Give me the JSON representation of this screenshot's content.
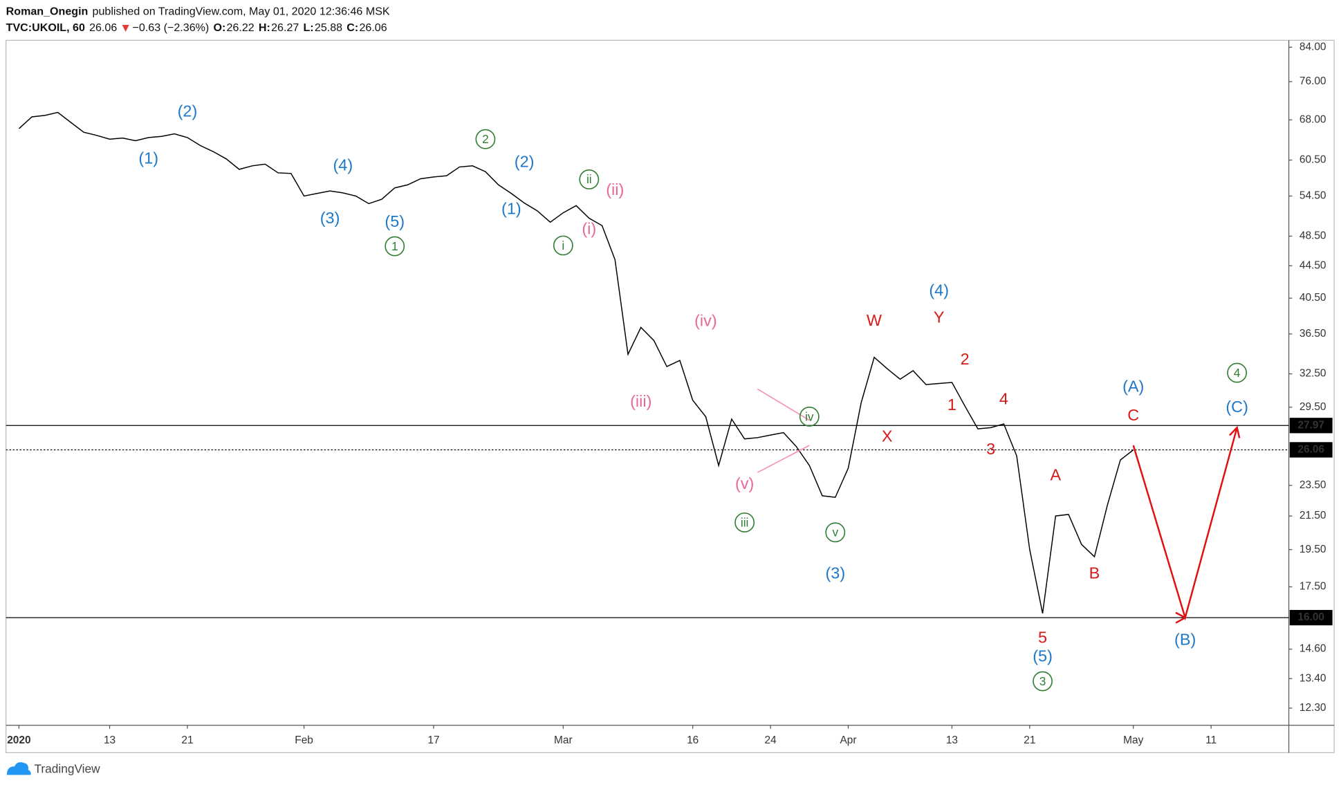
{
  "header": {
    "author": "Roman_Onegin",
    "published": "published on TradingView.com, May 01, 2020 12:36:46 MSK",
    "symbol": "TVC:UKOIL, 60",
    "last": "26.06",
    "change": "−0.63 (−2.36%)",
    "o_label": "O:",
    "o": "26.22",
    "h_label": "H:",
    "h": "26.27",
    "l_label": "L:",
    "l": "25.88",
    "c_label": "C:",
    "c": "26.06"
  },
  "footer": {
    "brand": "TradingView"
  },
  "chart_data": {
    "type": "line",
    "color": "#000000",
    "log_scale": true,
    "grid": false,
    "xlim": [
      "2020-01-01",
      "2020-05-19"
    ],
    "ylim": [
      11.7,
      85.7
    ],
    "xticks": [
      {
        "value": "2020-01-02",
        "label": "2020"
      },
      {
        "value": "2020-01-13",
        "label": "13"
      },
      {
        "value": "2020-01-21",
        "label": "21"
      },
      {
        "value": "2020-02-03",
        "label": "Feb"
      },
      {
        "value": "2020-02-17",
        "label": "17"
      },
      {
        "value": "2020-03-02",
        "label": "Mar"
      },
      {
        "value": "2020-03-16",
        "label": "16"
      },
      {
        "value": "2020-03-24",
        "label": "24"
      },
      {
        "value": "2020-04-01",
        "label": "Apr"
      },
      {
        "value": "2020-04-13",
        "label": "13"
      },
      {
        "value": "2020-04-21",
        "label": "21"
      },
      {
        "value": "2020-05-01",
        "label": "May"
      },
      {
        "value": "2020-05-11",
        "label": "11"
      }
    ],
    "yticks": [
      {
        "value": 84,
        "label": "84.00"
      },
      {
        "value": 76,
        "label": "76.00"
      },
      {
        "value": 68,
        "label": "68.00"
      },
      {
        "value": 60.5,
        "label": "60.50"
      },
      {
        "value": 54.5,
        "label": "54.50"
      },
      {
        "value": 48.5,
        "label": "48.50"
      },
      {
        "value": 44.5,
        "label": "44.50"
      },
      {
        "value": 40.5,
        "label": "40.50"
      },
      {
        "value": 36.5,
        "label": "36.50"
      },
      {
        "value": 32.5,
        "label": "32.50"
      },
      {
        "value": 29.5,
        "label": "29.50"
      },
      {
        "value": 23.5,
        "label": "23.50"
      },
      {
        "value": 21.5,
        "label": "21.50"
      },
      {
        "value": 19.5,
        "label": "19.50"
      },
      {
        "value": 17.5,
        "label": "17.50"
      },
      {
        "value": 14.6,
        "label": "14.60"
      },
      {
        "value": 13.4,
        "label": "13.40"
      },
      {
        "value": 12.3,
        "label": "12.30"
      }
    ],
    "x": [
      "2020-01-02",
      "2020-01-03",
      "2020-01-06",
      "2020-01-07",
      "2020-01-08",
      "2020-01-09",
      "2020-01-10",
      "2020-01-13",
      "2020-01-14",
      "2020-01-15",
      "2020-01-16",
      "2020-01-17",
      "2020-01-20",
      "2020-01-21",
      "2020-01-22",
      "2020-01-23",
      "2020-01-24",
      "2020-01-27",
      "2020-01-28",
      "2020-01-29",
      "2020-01-30",
      "2020-01-31",
      "2020-02-03",
      "2020-02-04",
      "2020-02-05",
      "2020-02-06",
      "2020-02-07",
      "2020-02-10",
      "2020-02-11",
      "2020-02-12",
      "2020-02-13",
      "2020-02-14",
      "2020-02-17",
      "2020-02-18",
      "2020-02-19",
      "2020-02-20",
      "2020-02-21",
      "2020-02-24",
      "2020-02-25",
      "2020-02-26",
      "2020-02-27",
      "2020-02-28",
      "2020-03-02",
      "2020-03-03",
      "2020-03-04",
      "2020-03-05",
      "2020-03-06",
      "2020-03-09",
      "2020-03-10",
      "2020-03-11",
      "2020-03-12",
      "2020-03-13",
      "2020-03-16",
      "2020-03-17",
      "2020-03-18",
      "2020-03-19",
      "2020-03-20",
      "2020-03-23",
      "2020-03-24",
      "2020-03-25",
      "2020-03-26",
      "2020-03-27",
      "2020-03-30",
      "2020-03-31",
      "2020-04-01",
      "2020-04-02",
      "2020-04-03",
      "2020-04-06",
      "2020-04-07",
      "2020-04-08",
      "2020-04-09",
      "2020-04-10",
      "2020-04-13",
      "2020-04-14",
      "2020-04-15",
      "2020-04-16",
      "2020-04-17",
      "2020-04-20",
      "2020-04-21",
      "2020-04-22",
      "2020-04-23",
      "2020-04-24",
      "2020-04-27",
      "2020-04-28",
      "2020-04-29",
      "2020-04-30",
      "2020-05-01"
    ],
    "values": [
      66.3,
      68.6,
      68.9,
      69.5,
      67.5,
      65.6,
      65.0,
      64.3,
      64.5,
      64.0,
      64.6,
      64.8,
      65.3,
      64.6,
      63.1,
      62.0,
      60.7,
      58.9,
      59.5,
      59.8,
      58.3,
      58.2,
      54.5,
      54.9,
      55.3,
      55.0,
      54.5,
      53.3,
      54.0,
      55.8,
      56.3,
      57.3,
      57.6,
      57.8,
      59.3,
      59.5,
      58.5,
      56.3,
      54.9,
      53.4,
      52.2,
      50.5,
      51.9,
      53.0,
      51.1,
      50.0,
      45.3,
      34.4,
      37.2,
      35.8,
      33.2,
      33.8,
      30.1,
      28.7,
      24.9,
      28.5,
      26.9,
      27.0,
      27.2,
      27.4,
      26.3,
      24.9,
      22.8,
      22.7,
      24.7,
      29.9,
      34.1,
      33.0,
      32.0,
      32.8,
      31.5,
      31.6,
      31.7,
      29.6,
      27.7,
      27.8,
      28.1,
      25.6,
      19.5,
      16.2,
      21.5,
      21.6,
      19.8,
      19.1,
      22.2,
      25.3,
      26.06
    ],
    "hlines": [
      {
        "value": 27.97,
        "label": "27.97",
        "style": "solid"
      },
      {
        "value": 26.06,
        "label": "26.06",
        "style": "dotted"
      },
      {
        "value": 16,
        "label": "16.00",
        "style": "solid"
      }
    ],
    "trendlines": [
      {
        "color": "#f48fb1",
        "x": [
          "2020-03-23",
          "2020-03-27"
        ],
        "y": [
          31.1,
          28.4
        ]
      },
      {
        "color": "#f48fb1",
        "x": [
          "2020-03-23",
          "2020-03-27"
        ],
        "y": [
          24.4,
          26.4
        ]
      }
    ],
    "projection": {
      "color": "#e01010",
      "x": [
        "2020-05-01",
        "2020-05-07",
        "2020-05-13"
      ],
      "y": [
        26.4,
        16.0,
        27.8
      ]
    },
    "annotations": [
      {
        "text": "(2)",
        "color": "#1e78c8",
        "circled": false,
        "x": "2020-01-21",
        "y": 69.7
      },
      {
        "text": "(1)",
        "color": "#1e78c8",
        "circled": false,
        "x": "2020-01-16",
        "y": 60.8
      },
      {
        "text": "(4)",
        "color": "#1e78c8",
        "circled": false,
        "x": "2020-02-06",
        "y": 59.6
      },
      {
        "text": "(3)",
        "color": "#1e78c8",
        "circled": false,
        "x": "2020-02-05",
        "y": 51.1
      },
      {
        "text": "(5)",
        "color": "#1e78c8",
        "circled": false,
        "x": "2020-02-12",
        "y": 50.6
      },
      {
        "text": "1",
        "color": "#2e7d32",
        "circled": true,
        "x": "2020-02-12",
        "y": 47.1
      },
      {
        "text": "2",
        "color": "#2e7d32",
        "circled": true,
        "x": "2020-02-21",
        "y": 64.3
      },
      {
        "text": "(2)",
        "color": "#1e78c8",
        "circled": false,
        "x": "2020-02-26",
        "y": 60.2
      },
      {
        "text": "(1)",
        "color": "#1e78c8",
        "circled": false,
        "x": "2020-02-25",
        "y": 52.5
      },
      {
        "text": "ii",
        "color": "#2e7d32",
        "circled": true,
        "x": "2020-03-04",
        "y": 57.2
      },
      {
        "text": "(ii)",
        "color": "#e8679a",
        "circled": false,
        "x": "2020-03-06",
        "y": 55.5
      },
      {
        "text": "i",
        "color": "#2e7d32",
        "circled": true,
        "x": "2020-03-02",
        "y": 47.2
      },
      {
        "text": "(i)",
        "color": "#e8679a",
        "circled": false,
        "x": "2020-03-04",
        "y": 49.5
      },
      {
        "text": "(iii)",
        "color": "#e8679a",
        "circled": false,
        "x": "2020-03-10",
        "y": 30.0
      },
      {
        "text": "(iv)",
        "color": "#e8679a",
        "circled": false,
        "x": "2020-03-17",
        "y": 37.9
      },
      {
        "text": "(v)",
        "color": "#e8679a",
        "circled": false,
        "x": "2020-03-20",
        "y": 23.6
      },
      {
        "text": "iii",
        "color": "#2e7d32",
        "circled": true,
        "x": "2020-03-20",
        "y": 21.1
      },
      {
        "text": "iv",
        "color": "#2e7d32",
        "circled": true,
        "x": "2020-03-27",
        "y": 28.7
      },
      {
        "text": "v",
        "color": "#2e7d32",
        "circled": true,
        "x": "2020-03-31",
        "y": 20.5
      },
      {
        "text": "(3)",
        "color": "#1e78c8",
        "circled": false,
        "x": "2020-03-31",
        "y": 18.2
      },
      {
        "text": "W",
        "color": "#d61a1a",
        "circled": false,
        "x": "2020-04-03",
        "y": 37.95
      },
      {
        "text": "X",
        "color": "#d61a1a",
        "circled": false,
        "x": "2020-04-06",
        "y": 27.1
      },
      {
        "text": "(4)",
        "color": "#1e78c8",
        "circled": false,
        "x": "2020-04-10",
        "y": 41.4
      },
      {
        "text": "Y",
        "color": "#d61a1a",
        "circled": false,
        "x": "2020-04-10",
        "y": 38.3
      },
      {
        "text": "2",
        "color": "#d61a1a",
        "circled": false,
        "x": "2020-04-14",
        "y": 33.9
      },
      {
        "text": "1",
        "color": "#d61a1a",
        "circled": false,
        "x": "2020-04-13",
        "y": 29.7
      },
      {
        "text": "4",
        "color": "#d61a1a",
        "circled": false,
        "x": "2020-04-17",
        "y": 30.2
      },
      {
        "text": "3",
        "color": "#d61a1a",
        "circled": false,
        "x": "2020-04-16",
        "y": 26.1
      },
      {
        "text": "A",
        "color": "#d61a1a",
        "circled": false,
        "x": "2020-04-23",
        "y": 24.2
      },
      {
        "text": "B",
        "color": "#d61a1a",
        "circled": false,
        "x": "2020-04-28",
        "y": 18.2
      },
      {
        "text": "C",
        "color": "#d61a1a",
        "circled": false,
        "x": "2020-05-01",
        "y": 28.8
      },
      {
        "text": "(A)",
        "color": "#1e78c8",
        "circled": false,
        "x": "2020-05-01",
        "y": 31.3
      },
      {
        "text": "5",
        "color": "#d61a1a",
        "circled": false,
        "x": "2020-04-22",
        "y": 15.1
      },
      {
        "text": "(5)",
        "color": "#1e78c8",
        "circled": false,
        "x": "2020-04-22",
        "y": 14.3
      },
      {
        "text": "3",
        "color": "#2e7d32",
        "circled": true,
        "x": "2020-04-22",
        "y": 13.3
      },
      {
        "text": "(B)",
        "color": "#1e78c8",
        "circled": false,
        "x": "2020-05-07",
        "y": 15.0
      },
      {
        "text": "4",
        "color": "#2e7d32",
        "circled": true,
        "x": "2020-05-13",
        "y": 32.6
      },
      {
        "text": "(C)",
        "color": "#1e78c8",
        "circled": false,
        "x": "2020-05-13",
        "y": 29.5
      }
    ]
  }
}
